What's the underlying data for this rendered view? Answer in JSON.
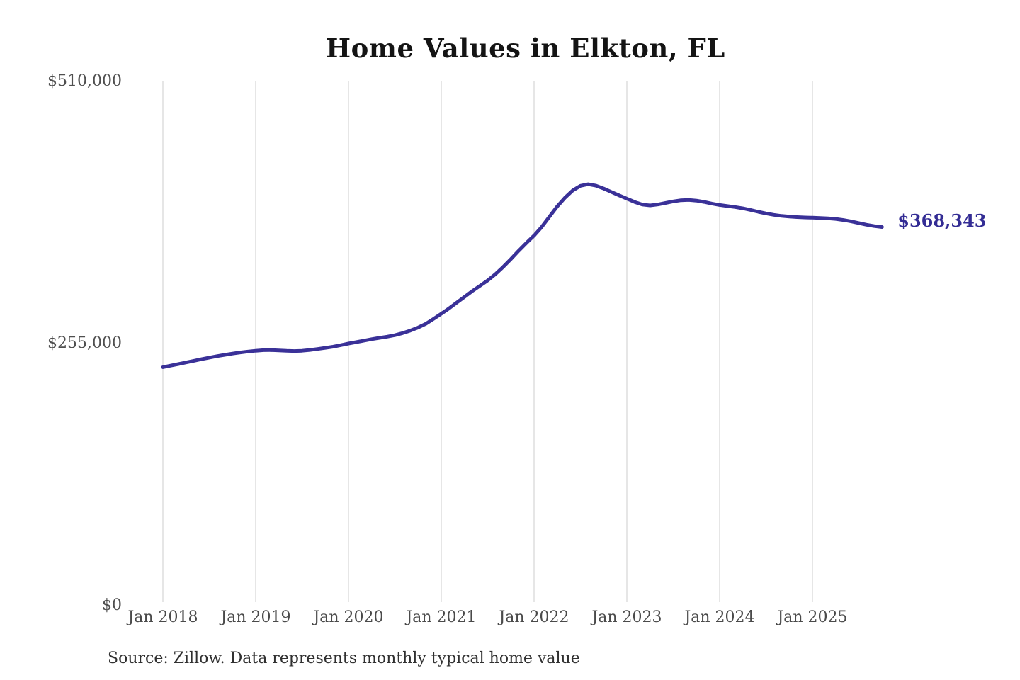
{
  "title": "Home Values in Elkton, FL",
  "source_note": "Source: Zillow. Data represents monthly typical home value",
  "end_label": "$368,343",
  "colors": {
    "line": "#3a3198",
    "end_label_text": "#332c94",
    "grid": "#cccccc",
    "axis_text": "#4a4a4a",
    "title_text": "#141414",
    "background": "#ffffff"
  },
  "chart_data": {
    "type": "line",
    "title": "Home Values in Elkton, FL",
    "series_name": "Monthly typical home value",
    "x_unit": "month",
    "start_month": "2018-01",
    "end_month": "2025-10",
    "last_value": 368343,
    "ylim": [
      0,
      510000
    ],
    "grid": "vertical-only",
    "legend": "none",
    "y_ticks": [
      {
        "label": "$0",
        "value": 0
      },
      {
        "label": "$255,000",
        "value": 255000
      },
      {
        "label": "$510,000",
        "value": 510000
      }
    ],
    "x_tick_labels": [
      "Jan 2018",
      "Jan 2019",
      "Jan 2020",
      "Jan 2021",
      "Jan 2022",
      "Jan 2023",
      "Jan 2024",
      "Jan 2025"
    ],
    "values": [
      232000,
      233500,
      235000,
      236600,
      238200,
      239800,
      241300,
      242700,
      244000,
      245200,
      246300,
      247200,
      248000,
      248500,
      248600,
      248300,
      247900,
      247700,
      248000,
      248700,
      249700,
      250800,
      251900,
      253400,
      255000,
      256400,
      257800,
      259300,
      260500,
      261700,
      263100,
      265100,
      267600,
      270600,
      274200,
      279000,
      284000,
      289200,
      294800,
      300400,
      306000,
      311200,
      316400,
      322500,
      329500,
      337200,
      345200,
      352800,
      360000,
      368500,
      378500,
      388500,
      397000,
      404000,
      408500,
      410000,
      408600,
      405800,
      402500,
      399200,
      396000,
      392800,
      390200,
      389400,
      390300,
      391800,
      393300,
      394400,
      394700,
      394100,
      392800,
      391200,
      389800,
      388800,
      387800,
      386600,
      385000,
      383200,
      381600,
      380200,
      379200,
      378500,
      378000,
      377700,
      377500,
      377200,
      376800,
      376200,
      375200,
      373800,
      372200,
      370600,
      369300,
      368343
    ]
  }
}
